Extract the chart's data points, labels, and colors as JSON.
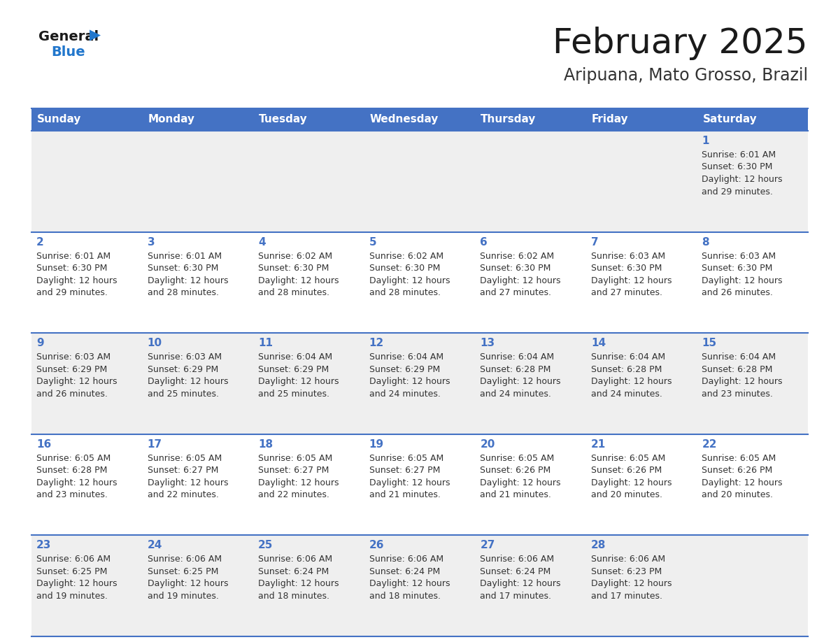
{
  "title": "February 2025",
  "subtitle": "Aripuana, Mato Grosso, Brazil",
  "days_of_week": [
    "Sunday",
    "Monday",
    "Tuesday",
    "Wednesday",
    "Thursday",
    "Friday",
    "Saturday"
  ],
  "header_bg": "#4472C4",
  "header_text_color": "#FFFFFF",
  "cell_bg_odd": "#EFEFEF",
  "cell_bg_even": "#FFFFFF",
  "day_number_color": "#4472C4",
  "info_text_color": "#333333",
  "border_color": "#4472C4",
  "title_color": "#1a1a1a",
  "subtitle_color": "#333333",
  "logo_black": "#1a1a1a",
  "logo_blue": "#2277CC",
  "calendar_data": [
    [
      null,
      null,
      null,
      null,
      null,
      null,
      1
    ],
    [
      2,
      3,
      4,
      5,
      6,
      7,
      8
    ],
    [
      9,
      10,
      11,
      12,
      13,
      14,
      15
    ],
    [
      16,
      17,
      18,
      19,
      20,
      21,
      22
    ],
    [
      23,
      24,
      25,
      26,
      27,
      28,
      null
    ]
  ],
  "sunrise_data": {
    "1": [
      "6:01 AM",
      "6:30 PM",
      "12 hours",
      "29 minutes"
    ],
    "2": [
      "6:01 AM",
      "6:30 PM",
      "12 hours",
      "29 minutes"
    ],
    "3": [
      "6:01 AM",
      "6:30 PM",
      "12 hours",
      "28 minutes"
    ],
    "4": [
      "6:02 AM",
      "6:30 PM",
      "12 hours",
      "28 minutes"
    ],
    "5": [
      "6:02 AM",
      "6:30 PM",
      "12 hours",
      "28 minutes"
    ],
    "6": [
      "6:02 AM",
      "6:30 PM",
      "12 hours",
      "27 minutes"
    ],
    "7": [
      "6:03 AM",
      "6:30 PM",
      "12 hours",
      "27 minutes"
    ],
    "8": [
      "6:03 AM",
      "6:30 PM",
      "12 hours",
      "26 minutes"
    ],
    "9": [
      "6:03 AM",
      "6:29 PM",
      "12 hours",
      "26 minutes"
    ],
    "10": [
      "6:03 AM",
      "6:29 PM",
      "12 hours",
      "25 minutes"
    ],
    "11": [
      "6:04 AM",
      "6:29 PM",
      "12 hours",
      "25 minutes"
    ],
    "12": [
      "6:04 AM",
      "6:29 PM",
      "12 hours",
      "24 minutes"
    ],
    "13": [
      "6:04 AM",
      "6:28 PM",
      "12 hours",
      "24 minutes"
    ],
    "14": [
      "6:04 AM",
      "6:28 PM",
      "12 hours",
      "24 minutes"
    ],
    "15": [
      "6:04 AM",
      "6:28 PM",
      "12 hours",
      "23 minutes"
    ],
    "16": [
      "6:05 AM",
      "6:28 PM",
      "12 hours",
      "23 minutes"
    ],
    "17": [
      "6:05 AM",
      "6:27 PM",
      "12 hours",
      "22 minutes"
    ],
    "18": [
      "6:05 AM",
      "6:27 PM",
      "12 hours",
      "22 minutes"
    ],
    "19": [
      "6:05 AM",
      "6:27 PM",
      "12 hours",
      "21 minutes"
    ],
    "20": [
      "6:05 AM",
      "6:26 PM",
      "12 hours",
      "21 minutes"
    ],
    "21": [
      "6:05 AM",
      "6:26 PM",
      "12 hours",
      "20 minutes"
    ],
    "22": [
      "6:05 AM",
      "6:26 PM",
      "12 hours",
      "20 minutes"
    ],
    "23": [
      "6:06 AM",
      "6:25 PM",
      "12 hours",
      "19 minutes"
    ],
    "24": [
      "6:06 AM",
      "6:25 PM",
      "12 hours",
      "19 minutes"
    ],
    "25": [
      "6:06 AM",
      "6:24 PM",
      "12 hours",
      "18 minutes"
    ],
    "26": [
      "6:06 AM",
      "6:24 PM",
      "12 hours",
      "18 minutes"
    ],
    "27": [
      "6:06 AM",
      "6:24 PM",
      "12 hours",
      "17 minutes"
    ],
    "28": [
      "6:06 AM",
      "6:23 PM",
      "12 hours",
      "17 minutes"
    ]
  }
}
